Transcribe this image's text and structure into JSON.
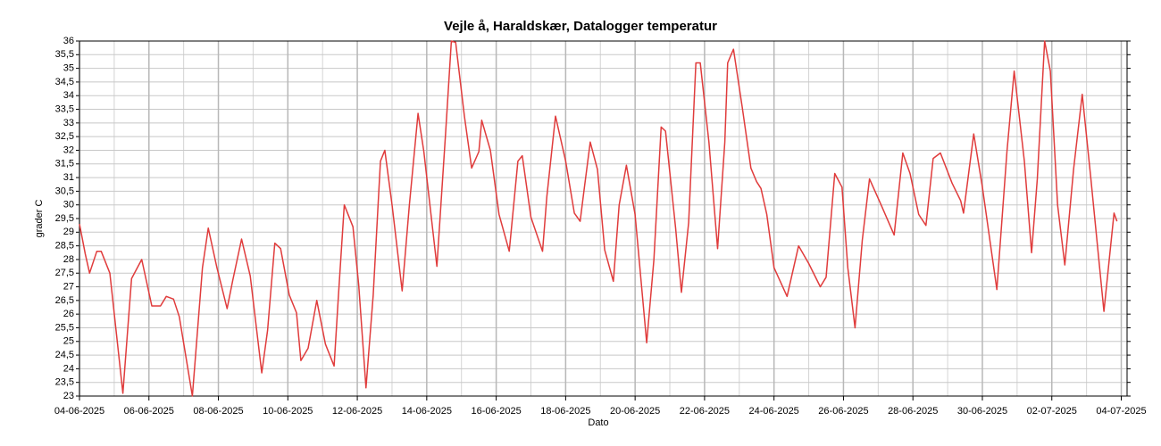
{
  "chart_data": {
    "type": "line",
    "title": "Vejle å, Haraldskær, Datalogger temperatur",
    "xlabel": "Dato",
    "ylabel": "grader C",
    "grid": true,
    "xlim": [
      "04-06-2025 00:00",
      "04-07-2025 04:00"
    ],
    "xticks": [
      "04-06-2025",
      "06-06-2025",
      "08-06-2025",
      "10-06-2025",
      "12-06-2025",
      "14-06-2025",
      "16-06-2025",
      "18-06-2025",
      "20-06-2025",
      "22-06-2025",
      "24-06-2025",
      "26-06-2025",
      "28-06-2025",
      "30-06-2025",
      "02-07-2025",
      "04-07-2025"
    ],
    "ylim": [
      23,
      36
    ],
    "yticks": [
      23,
      {
        "value": 23.5,
        "label": "23,5"
      },
      24,
      {
        "value": 24.5,
        "label": "24,5"
      },
      25,
      {
        "value": 25.5,
        "label": "25,5"
      },
      26,
      {
        "value": 26.5,
        "label": "26,5"
      },
      27,
      {
        "value": 27.5,
        "label": "27,5"
      },
      28,
      {
        "value": 28.5,
        "label": "28,5"
      },
      29,
      {
        "value": 29.5,
        "label": "29,5"
      },
      30,
      {
        "value": 30.5,
        "label": "30,5"
      },
      31,
      {
        "value": 31.5,
        "label": "31,5"
      },
      32,
      {
        "value": 32.5,
        "label": "32,5"
      },
      33,
      {
        "value": 33.5,
        "label": "33,5"
      },
      34,
      {
        "value": 34.5,
        "label": "34,5"
      },
      35,
      {
        "value": 35.5,
        "label": "35,5"
      },
      36
    ],
    "x": [
      "04-06-2025 00:00",
      "04-06-2025 04:00",
      "04-06-2025 07:00",
      "04-06-2025 12:00",
      "04-06-2025 15:00",
      "04-06-2025 21:00",
      "05-06-2025 06:00",
      "05-06-2025 12:00",
      "05-06-2025 19:00",
      "06-06-2025 02:00",
      "06-06-2025 08:00",
      "06-06-2025 12:00",
      "06-06-2025 17:00",
      "06-06-2025 21:00",
      "07-06-2025 06:00",
      "07-06-2025 13:00",
      "07-06-2025 17:00",
      "07-06-2025 23:00",
      "08-06-2025 06:00",
      "08-06-2025 10:00",
      "08-06-2025 16:00",
      "08-06-2025 22:00",
      "09-06-2025 06:00",
      "09-06-2025 10:00",
      "09-06-2025 15:00",
      "09-06-2025 19:00",
      "10-06-2025 01:00",
      "10-06-2025 06:00",
      "10-06-2025 09:00",
      "10-06-2025 14:00",
      "10-06-2025 20:00",
      "11-06-2025 02:00",
      "11-06-2025 08:00",
      "11-06-2025 11:00",
      "11-06-2025 15:00",
      "11-06-2025 21:00",
      "12-06-2025 01:00",
      "12-06-2025 06:00",
      "12-06-2025 11:00",
      "12-06-2025 16:00",
      "12-06-2025 19:00",
      "13-06-2025 00:00",
      "13-06-2025 07:00",
      "13-06-2025 12:00",
      "13-06-2025 18:00",
      "13-06-2025 22:00",
      "14-06-2025 07:00",
      "14-06-2025 13:00",
      "14-06-2025 17:00",
      "14-06-2025 20:00",
      "15-06-2025 02:00",
      "15-06-2025 07:00",
      "15-06-2025 12:00",
      "15-06-2025 14:00",
      "15-06-2025 20:00",
      "16-06-2025 02:00",
      "16-06-2025 09:00",
      "16-06-2025 15:00",
      "16-06-2025 18:00",
      "17-06-2025 00:00",
      "17-06-2025 08:00",
      "17-06-2025 11:00",
      "17-06-2025 17:00",
      "18-06-2025 00:00",
      "18-06-2025 06:00",
      "18-06-2025 10:00",
      "18-06-2025 13:00",
      "18-06-2025 17:00",
      "18-06-2025 22:00",
      "19-06-2025 03:00",
      "19-06-2025 09:00",
      "19-06-2025 13:00",
      "19-06-2025 18:00",
      "20-06-2025 00:00",
      "20-06-2025 08:00",
      "20-06-2025 13:00",
      "20-06-2025 18:00",
      "20-06-2025 21:00",
      "21-06-2025 04:00",
      "21-06-2025 08:00",
      "21-06-2025 13:00",
      "21-06-2025 18:00",
      "21-06-2025 21:00",
      "22-06-2025 03:00",
      "22-06-2025 09:00",
      "22-06-2025 14:00",
      "22-06-2025 16:00",
      "22-06-2025 20:00",
      "23-06-2025 02:00",
      "23-06-2025 08:00",
      "23-06-2025 12:00",
      "23-06-2025 15:00",
      "23-06-2025 19:00",
      "24-06-2025 00:00",
      "24-06-2025 09:00",
      "24-06-2025 17:00",
      "25-06-2025 00:00",
      "25-06-2025 08:00",
      "25-06-2025 12:00",
      "25-06-2025 18:00",
      "25-06-2025 23:00",
      "26-06-2025 03:00",
      "26-06-2025 08:00",
      "26-06-2025 13:00",
      "26-06-2025 18:00",
      "27-06-2025 02:00",
      "27-06-2025 11:00",
      "27-06-2025 17:00",
      "27-06-2025 22:00",
      "28-06-2025 04:00",
      "28-06-2025 09:00",
      "28-06-2025 14:00",
      "28-06-2025 19:00",
      "29-06-2025 03:00",
      "29-06-2025 09:00",
      "29-06-2025 11:00",
      "29-06-2025 18:00",
      "30-06-2025 00:00",
      "30-06-2025 10:00",
      "30-06-2025 17:00",
      "30-06-2025 22:00",
      "01-07-2025 05:00",
      "01-07-2025 10:00",
      "01-07-2025 14:00",
      "01-07-2025 19:00",
      "01-07-2025 23:00",
      "02-07-2025 04:00",
      "02-07-2025 09:00",
      "02-07-2025 15:00",
      "02-07-2025 21:00",
      "03-07-2025 03:00",
      "03-07-2025 12:00",
      "03-07-2025 19:00",
      "03-07-2025 21:00"
    ],
    "series": [
      {
        "color": "#e03c3c",
        "values": [
          29.3,
          28.2,
          27.5,
          28.3,
          28.3,
          27.5,
          23.1,
          27.3,
          28.0,
          26.3,
          26.3,
          26.65,
          26.55,
          25.9,
          23.0,
          27.7,
          29.15,
          27.7,
          26.2,
          27.25,
          28.75,
          27.4,
          23.85,
          25.4,
          28.6,
          28.4,
          26.7,
          26.05,
          24.3,
          24.75,
          26.5,
          24.9,
          24.1,
          26.7,
          30.0,
          29.2,
          27.05,
          23.3,
          26.7,
          31.6,
          32.0,
          30.0,
          26.85,
          30.0,
          33.35,
          31.95,
          27.75,
          32.6,
          36.0,
          35.95,
          33.25,
          31.35,
          31.95,
          33.1,
          32.0,
          29.65,
          28.3,
          31.6,
          31.8,
          29.55,
          28.3,
          30.3,
          33.25,
          31.6,
          29.7,
          29.4,
          30.65,
          32.3,
          31.3,
          28.35,
          27.2,
          30.0,
          31.45,
          29.65,
          24.95,
          28.0,
          32.85,
          32.7,
          29.15,
          26.8,
          29.35,
          35.2,
          35.2,
          32.3,
          28.4,
          32.3,
          35.2,
          35.7,
          33.6,
          31.35,
          30.85,
          30.6,
          29.65,
          27.7,
          26.65,
          28.5,
          27.85,
          27.0,
          27.35,
          31.15,
          30.65,
          27.7,
          25.5,
          28.7,
          30.95,
          30.0,
          28.9,
          31.9,
          31.15,
          29.65,
          29.25,
          31.7,
          31.9,
          30.8,
          30.15,
          29.7,
          32.6,
          30.65,
          26.9,
          31.95,
          34.9,
          31.6,
          28.25,
          30.95,
          36.0,
          34.9,
          30.0,
          27.8,
          31.3,
          34.05,
          30.95,
          26.1,
          29.7,
          29.4
        ]
      }
    ]
  }
}
